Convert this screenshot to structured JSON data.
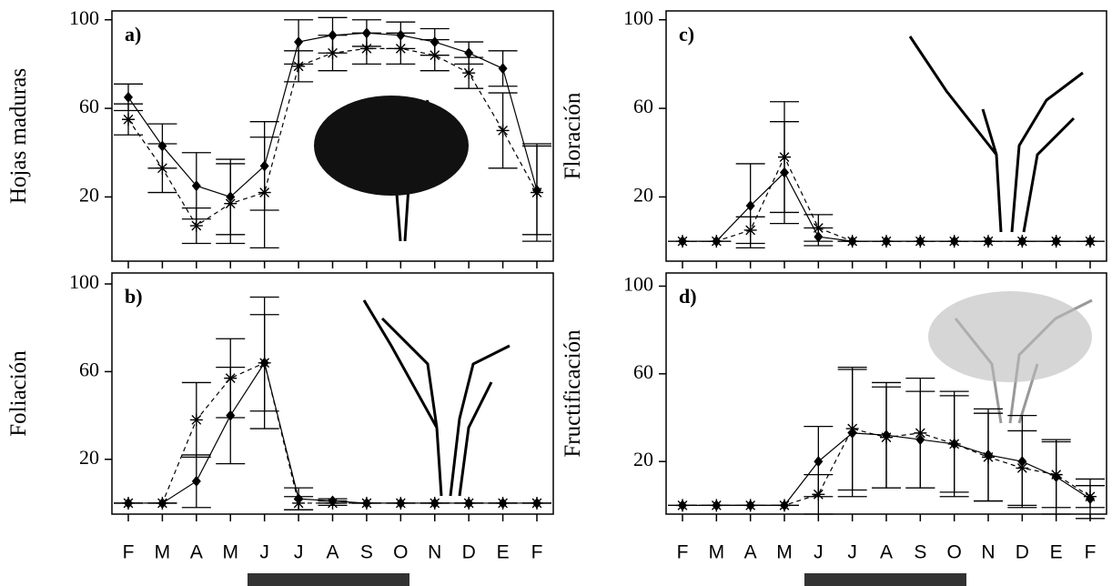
{
  "chart_data": [
    {
      "type": "line",
      "panel_label": "a)",
      "y_label": "Hojas maduras",
      "categories": [
        null,
        null,
        null,
        null,
        null,
        null,
        null,
        null,
        null,
        null,
        null,
        null,
        null
      ],
      "ylim": [
        -9,
        104
      ],
      "yticks": [
        20,
        60,
        100
      ],
      "series": [
        {
          "color": "#000000",
          "line_style": "solid",
          "marker": "diamond",
          "values": [
            65,
            43,
            25,
            20,
            34,
            90,
            93,
            94,
            93,
            90,
            85,
            78,
            23
          ],
          "errors": [
            6,
            10,
            15,
            17,
            20,
            10,
            8,
            6,
            6,
            6,
            5,
            8,
            20
          ]
        },
        {
          "color": "#000000",
          "line_style": "dashed",
          "marker": "asterisk",
          "values": [
            55,
            33,
            7,
            17,
            22,
            79,
            85,
            87,
            87,
            84,
            76,
            50,
            22
          ],
          "errors": [
            7,
            11,
            8,
            18,
            25,
            7,
            8,
            7,
            7,
            7,
            7,
            17,
            22
          ]
        }
      ]
    },
    {
      "type": "line",
      "panel_label": "b)",
      "y_label": "Foliación",
      "categories": [
        "F",
        "M",
        "A",
        "M",
        "J",
        "J",
        "A",
        "S",
        "O",
        "N",
        "D",
        "E",
        "F"
      ],
      "ylim": [
        -5,
        105
      ],
      "yticks": [
        20,
        60,
        100
      ],
      "series": [
        {
          "color": "#000000",
          "line_style": "solid",
          "marker": "diamond",
          "values": [
            0,
            0,
            10,
            40,
            64,
            2,
            1,
            0,
            0,
            0,
            0,
            0,
            0
          ],
          "errors": [
            0,
            0,
            12,
            22,
            30,
            5,
            1,
            0,
            0,
            0,
            0,
            0,
            0
          ]
        },
        {
          "color": "#000000",
          "line_style": "dashed",
          "marker": "asterisk",
          "values": [
            0,
            0,
            38,
            57,
            64,
            0,
            0,
            0,
            0,
            0,
            0,
            0,
            0
          ],
          "errors": [
            0,
            0,
            17,
            18,
            22,
            3,
            1,
            0,
            0,
            0,
            0,
            0,
            0
          ]
        }
      ]
    },
    {
      "type": "line",
      "panel_label": "c)",
      "y_label": "Floración",
      "categories": [
        null,
        null,
        null,
        null,
        null,
        null,
        null,
        null,
        null,
        null,
        null,
        null,
        null
      ],
      "ylim": [
        -9,
        104
      ],
      "yticks": [
        20,
        60,
        100
      ],
      "series": [
        {
          "color": "#000000",
          "line_style": "solid",
          "marker": "diamond",
          "values": [
            0,
            0,
            16,
            31,
            2,
            0,
            0,
            0,
            0,
            0,
            0,
            0,
            0
          ],
          "errors": [
            0,
            0,
            19,
            23,
            4,
            0,
            0,
            0,
            0,
            0,
            0,
            0,
            0
          ]
        },
        {
          "color": "#000000",
          "line_style": "dashed",
          "marker": "asterisk",
          "values": [
            0,
            0,
            5,
            38,
            6,
            0,
            0,
            0,
            0,
            0,
            0,
            0,
            0
          ],
          "errors": [
            0,
            0,
            6,
            25,
            6,
            0,
            0,
            0,
            0,
            0,
            0,
            0,
            0
          ]
        }
      ]
    },
    {
      "type": "line",
      "panel_label": "d)",
      "y_label": "Fructificación",
      "categories": [
        "F",
        "M",
        "A",
        "M",
        "J",
        "J",
        "A",
        "S",
        "O",
        "N",
        "D",
        "E",
        "F"
      ],
      "ylim": [
        -4,
        106
      ],
      "yticks": [
        20,
        60,
        100
      ],
      "series": [
        {
          "color": "#000000",
          "line_style": "solid",
          "marker": "diamond",
          "values": [
            0,
            0,
            0,
            0,
            20,
            33,
            32,
            30,
            28,
            23,
            20,
            13,
            3
          ],
          "errors": [
            0,
            0,
            0,
            0,
            16,
            29,
            24,
            22,
            22,
            21,
            21,
            17,
            9
          ]
        },
        {
          "color": "#000000",
          "line_style": "dashed",
          "marker": "asterisk",
          "values": [
            0,
            0,
            0,
            0,
            5,
            35,
            31,
            33,
            28,
            22,
            17,
            14,
            4
          ],
          "errors": [
            0,
            0,
            0,
            0,
            9,
            28,
            23,
            25,
            24,
            20,
            17,
            15,
            5
          ]
        }
      ]
    }
  ]
}
